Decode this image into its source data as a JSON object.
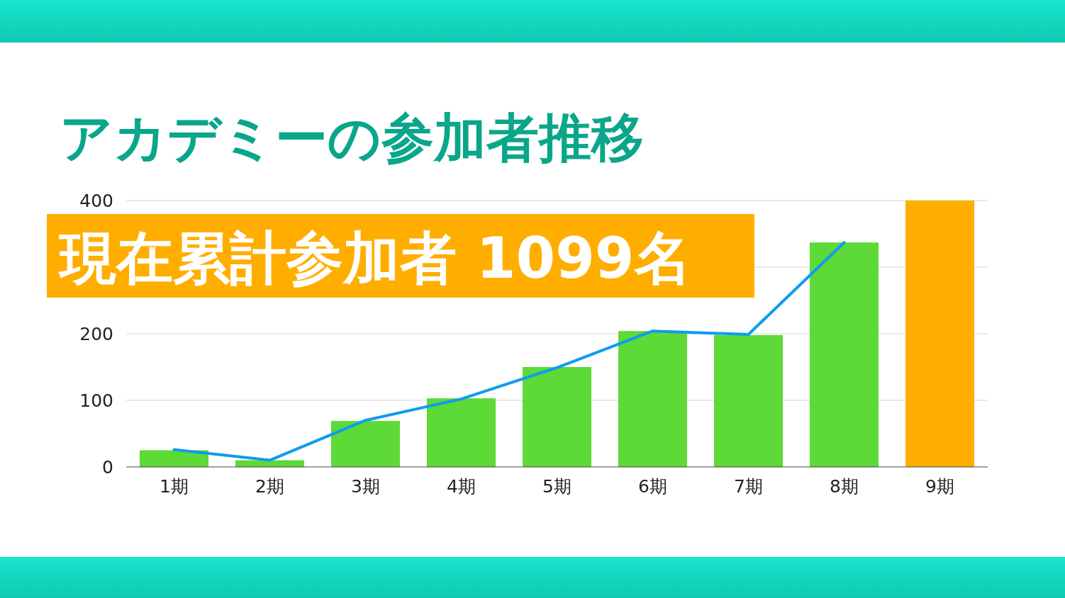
{
  "chart_data": {
    "type": "bar",
    "title": "アカデミーの参加者推移",
    "categories": [
      "1期",
      "2期",
      "3期",
      "4期",
      "5期",
      "6期",
      "7期",
      "8期",
      "9期"
    ],
    "series": [
      {
        "colors": [
          "#5dd938",
          "#5dd938",
          "#5dd938",
          "#5dd938",
          "#5dd938",
          "#5dd938",
          "#5dd938",
          "#5dd938",
          "#ffae00"
        ],
        "values": [
          25,
          10,
          69,
          103,
          150,
          204,
          198,
          337,
          400
        ]
      },
      {
        "type": "line",
        "color": "#0f9bf0",
        "values": [
          26,
          10,
          70,
          102,
          149,
          204,
          199,
          337,
          null
        ]
      }
    ],
    "ylim": [
      0,
      400
    ],
    "yticks": [
      0,
      100,
      200,
      {
        "value": 300,
        "label": null
      },
      400
    ],
    "grid": "y",
    "annotations": [
      "現在累計参加者 1099名"
    ]
  }
}
